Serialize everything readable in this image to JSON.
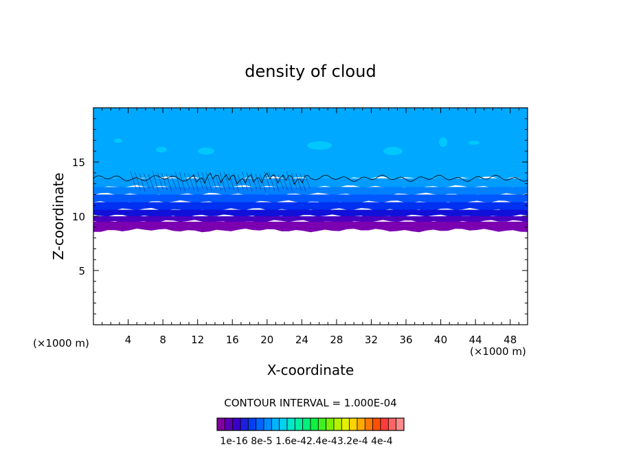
{
  "chart_data": {
    "type": "heatmap",
    "title": "density of cloud",
    "xlabel": "X-coordinate",
    "ylabel": "Z-coordinate",
    "x_unit": "(×1000 m)",
    "z_unit": "(×1000 m)",
    "xlim": [
      0,
      50
    ],
    "ylim": [
      0,
      20
    ],
    "x_ticks": [
      4,
      8,
      12,
      16,
      20,
      24,
      28,
      32,
      36,
      40,
      44,
      48
    ],
    "y_ticks": [
      5,
      10,
      15
    ],
    "contour_interval_text": "CONTOUR INTERVAL = 1.000E-04",
    "colorbar_labels": [
      "1e-16",
      "8e-5",
      "1.6e-4",
      "2.4e-4",
      "3.2e-4",
      "4e-4"
    ],
    "colorbar_label_text": "1e-16 8e-5 1.6e-42.4e-43.2e-4 4e-4",
    "colorbar_colors": [
      "#8000a0",
      "#5a00b4",
      "#3c00c8",
      "#1e1edc",
      "#0040f0",
      "#0064ff",
      "#008cff",
      "#00b4ff",
      "#00d2f0",
      "#00e6c8",
      "#00f0a0",
      "#00f078",
      "#10f040",
      "#40f020",
      "#78f000",
      "#b4f000",
      "#e6f000",
      "#ffd200",
      "#ffaa00",
      "#ff7800",
      "#ff5000",
      "#ff3c3c",
      "#ff6464",
      "#ff8c8c"
    ],
    "field_bands": [
      {
        "z": [
          8.7,
          9.5
        ],
        "color": "#7a00b0"
      },
      {
        "z": [
          9.5,
          10.0
        ],
        "color": "#4b00c0"
      },
      {
        "z": [
          10.0,
          10.6
        ],
        "color": "#1010d8"
      },
      {
        "z": [
          10.6,
          11.3
        ],
        "color": "#0030f0"
      },
      {
        "z": [
          11.3,
          12.0
        ],
        "color": "#0058ff"
      },
      {
        "z": [
          12.0,
          12.7
        ],
        "color": "#0080ff"
      },
      {
        "z": [
          12.7,
          13.5
        ],
        "color": "#009cff"
      },
      {
        "z": [
          13.5,
          20.0
        ],
        "color": "#00a8ff"
      }
    ],
    "grid": false,
    "legend": "colorbar-bottom"
  }
}
